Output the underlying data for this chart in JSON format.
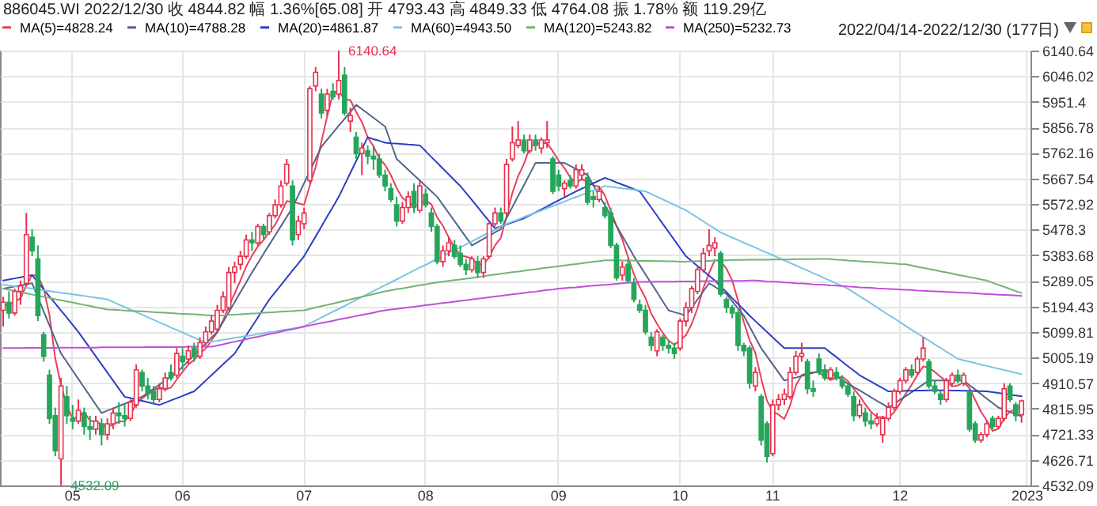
{
  "chart_data": {
    "type": "candlestick",
    "title": "886045.WI 2022/12/30 收 4844.82 幅 1.36%[65.08] 开 4793.43 高 4849.33 低 4764.08 振 1.78% 额 119.29亿",
    "categories": [
      null,
      null,
      null,
      null,
      null,
      null,
      null,
      null,
      null,
      null,
      null,
      null,
      "05",
      null,
      null,
      null,
      null,
      null,
      null,
      null,
      null,
      null,
      null,
      null,
      null,
      null,
      null,
      null,
      null,
      null,
      null,
      "06",
      null,
      null,
      null,
      null,
      null,
      null,
      null,
      null,
      null,
      null,
      null,
      null,
      null,
      null,
      null,
      null,
      null,
      null,
      null,
      null,
      "07",
      null,
      null,
      null,
      null,
      null,
      null,
      null,
      null,
      null,
      null,
      null,
      null,
      null,
      null,
      null,
      null,
      null,
      null,
      null,
      null,
      "08",
      null,
      null,
      null,
      null,
      null,
      null,
      null,
      null,
      null,
      null,
      null,
      null,
      null,
      null,
      null,
      null,
      null,
      null,
      null,
      null,
      null,
      null,
      "09",
      null,
      null,
      null,
      null,
      null,
      null,
      null,
      null,
      null,
      null,
      null,
      null,
      null,
      null,
      null,
      null,
      null,
      null,
      null,
      null,
      "10",
      null,
      null,
      null,
      null,
      null,
      null,
      null,
      null,
      null,
      null,
      null,
      null,
      null,
      null,
      null,
      "11",
      null,
      null,
      null,
      null,
      null,
      null,
      null,
      null,
      null,
      null,
      null,
      null,
      null,
      null,
      null,
      null,
      null,
      null,
      null,
      null,
      null,
      "12",
      null,
      null,
      null,
      null,
      null,
      null,
      null,
      null,
      null,
      null,
      null,
      null,
      null,
      null,
      null,
      null,
      null,
      null,
      null,
      null,
      null,
      "2023"
    ],
    "ohlc": [
      [
        5180,
        5230,
        5120,
        5210
      ],
      [
        5210,
        5250,
        5150,
        5170
      ],
      [
        5170,
        5260,
        5160,
        5250
      ],
      [
        5250,
        5290,
        5200,
        5270
      ],
      [
        5280,
        5540,
        5270,
        5460
      ],
      [
        5450,
        5480,
        5380,
        5400
      ],
      [
        5370,
        5420,
        5140,
        5160
      ],
      [
        5090,
        5100,
        4990,
        5010
      ],
      [
        4940,
        4960,
        4760,
        4780
      ],
      [
        4790,
        4820,
        4640,
        4660
      ],
      [
        4630,
        4930,
        4532.09,
        4900
      ],
      [
        4860,
        4900,
        4760,
        4790
      ],
      [
        4780,
        4830,
        4740,
        4770
      ],
      [
        4770,
        4850,
        4760,
        4810
      ],
      [
        4800,
        4820,
        4720,
        4750
      ],
      [
        4750,
        4790,
        4700,
        4740
      ],
      [
        4740,
        4790,
        4720,
        4770
      ],
      [
        4760,
        4780,
        4680,
        4720
      ],
      [
        4720,
        4780,
        4700,
        4760
      ],
      [
        4760,
        4820,
        4740,
        4800
      ],
      [
        4800,
        4840,
        4760,
        4790
      ],
      [
        4790,
        4830,
        4750,
        4780
      ],
      [
        4780,
        4850,
        4770,
        4840
      ],
      [
        4830,
        4980,
        4820,
        4960
      ],
      [
        4950,
        4960,
        4880,
        4900
      ],
      [
        4900,
        4930,
        4850,
        4870
      ],
      [
        4880,
        4900,
        4830,
        4850
      ],
      [
        4850,
        4910,
        4840,
        4890
      ],
      [
        4890,
        4950,
        4880,
        4930
      ],
      [
        4950,
        4980,
        4920,
        4930
      ],
      [
        4940,
        5040,
        4930,
        5020
      ],
      [
        5010,
        5040,
        4960,
        4990
      ],
      [
        5000,
        5050,
        4980,
        5030
      ],
      [
        5040,
        5060,
        4990,
        5010
      ],
      [
        5010,
        5080,
        5000,
        5060
      ],
      [
        5060,
        5120,
        5050,
        5100
      ],
      [
        5100,
        5160,
        5090,
        5140
      ],
      [
        5110,
        5200,
        5100,
        5180
      ],
      [
        5180,
        5250,
        5170,
        5230
      ],
      [
        5190,
        5340,
        5180,
        5320
      ],
      [
        5320,
        5360,
        5280,
        5340
      ],
      [
        5350,
        5400,
        5330,
        5380
      ],
      [
        5380,
        5460,
        5370,
        5440
      ],
      [
        5440,
        5470,
        5400,
        5430
      ],
      [
        5430,
        5500,
        5420,
        5490
      ],
      [
        5490,
        5500,
        5440,
        5460
      ],
      [
        5470,
        5540,
        5460,
        5530
      ],
      [
        5530,
        5590,
        5520,
        5570
      ],
      [
        5570,
        5660,
        5560,
        5640
      ],
      [
        5650,
        5740,
        5640,
        5720
      ],
      [
        5640,
        5660,
        5420,
        5440
      ],
      [
        5460,
        5530,
        5440,
        5510
      ],
      [
        5500,
        5560,
        5480,
        5540
      ],
      [
        5660,
        6010,
        5650,
        6000
      ],
      [
        6010,
        6080,
        5990,
        6060
      ],
      [
        5980,
        6000,
        5890,
        5910
      ],
      [
        5920,
        6000,
        5900,
        5980
      ],
      [
        5990,
        6020,
        5960,
        5970
      ],
      [
        5980,
        6140.64,
        5960,
        6030
      ],
      [
        6050,
        6080,
        5900,
        5910
      ],
      [
        5880,
        5930,
        5840,
        5900
      ],
      [
        5820,
        5840,
        5740,
        5760
      ],
      [
        5760,
        5800,
        5680,
        5780
      ],
      [
        5770,
        5790,
        5720,
        5750
      ],
      [
        5750,
        5790,
        5700,
        5740
      ],
      [
        5740,
        5760,
        5670,
        5680
      ],
      [
        5680,
        5700,
        5620,
        5640
      ],
      [
        5630,
        5650,
        5580,
        5590
      ],
      [
        5570,
        5600,
        5490,
        5510
      ],
      [
        5510,
        5580,
        5500,
        5560
      ],
      [
        5560,
        5620,
        5540,
        5600
      ],
      [
        5620,
        5650,
        5540,
        5560
      ],
      [
        5550,
        5660,
        5540,
        5640
      ],
      [
        5610,
        5630,
        5560,
        5570
      ],
      [
        5540,
        5560,
        5470,
        5490
      ],
      [
        5490,
        5500,
        5350,
        5360
      ],
      [
        5360,
        5420,
        5340,
        5400
      ],
      [
        5400,
        5450,
        5380,
        5430
      ],
      [
        5420,
        5440,
        5370,
        5380
      ],
      [
        5390,
        5420,
        5340,
        5350
      ],
      [
        5350,
        5370,
        5310,
        5330
      ],
      [
        5330,
        5380,
        5320,
        5370
      ],
      [
        5360,
        5380,
        5300,
        5320
      ],
      [
        5320,
        5380,
        5300,
        5370
      ],
      [
        5380,
        5510,
        5370,
        5500
      ],
      [
        5500,
        5560,
        5490,
        5540
      ],
      [
        5540,
        5560,
        5500,
        5510
      ],
      [
        5540,
        5740,
        5530,
        5720
      ],
      [
        5740,
        5860,
        5730,
        5800
      ],
      [
        5790,
        5880,
        5780,
        5810
      ],
      [
        5810,
        5830,
        5760,
        5770
      ],
      [
        5770,
        5830,
        5760,
        5810
      ],
      [
        5810,
        5830,
        5770,
        5790
      ],
      [
        5780,
        5820,
        5760,
        5810
      ],
      [
        5800,
        5880,
        5780,
        5810
      ],
      [
        5740,
        5750,
        5610,
        5620
      ],
      [
        5680,
        5700,
        5620,
        5640
      ],
      [
        5630,
        5660,
        5600,
        5650
      ],
      [
        5660,
        5680,
        5630,
        5640
      ],
      [
        5640,
        5720,
        5630,
        5700
      ],
      [
        5680,
        5720,
        5660,
        5700
      ],
      [
        5670,
        5690,
        5570,
        5580
      ],
      [
        5600,
        5620,
        5560,
        5590
      ],
      [
        5590,
        5640,
        5580,
        5620
      ],
      [
        5560,
        5580,
        5520,
        5530
      ],
      [
        5540,
        5560,
        5410,
        5420
      ],
      [
        5420,
        5430,
        5290,
        5300
      ],
      [
        5310,
        5360,
        5290,
        5340
      ],
      [
        5350,
        5370,
        5280,
        5290
      ],
      [
        5280,
        5300,
        5210,
        5220
      ],
      [
        5200,
        5220,
        5170,
        5180
      ],
      [
        5180,
        5200,
        5090,
        5100
      ],
      [
        5080,
        5100,
        5030,
        5050
      ],
      [
        5030,
        5110,
        5010,
        5100
      ],
      [
        5080,
        5090,
        5030,
        5050
      ],
      [
        5050,
        5070,
        5020,
        5040
      ],
      [
        5040,
        5060,
        5000,
        5020
      ],
      [
        5040,
        5150,
        5030,
        5140
      ],
      [
        5140,
        5210,
        5120,
        5190
      ],
      [
        5190,
        5270,
        5170,
        5260
      ],
      [
        5250,
        5340,
        5240,
        5330
      ],
      [
        5330,
        5410,
        5320,
        5390
      ],
      [
        5400,
        5480,
        5380,
        5420
      ],
      [
        5410,
        5450,
        5380,
        5430
      ],
      [
        5390,
        5400,
        5230,
        5240
      ],
      [
        5220,
        5230,
        5170,
        5190
      ],
      [
        5190,
        5200,
        5150,
        5170
      ],
      [
        5170,
        5180,
        5030,
        5050
      ],
      [
        5050,
        5060,
        5010,
        5030
      ],
      [
        5040,
        5050,
        4890,
        4910
      ],
      [
        4900,
        4970,
        4880,
        4950
      ],
      [
        4860,
        4870,
        4680,
        4700
      ],
      [
        4760,
        4770,
        4617,
        4640
      ],
      [
        4650,
        4850,
        4640,
        4830
      ],
      [
        4830,
        4870,
        4810,
        4850
      ],
      [
        4850,
        4890,
        4830,
        4870
      ],
      [
        4860,
        4970,
        4850,
        4950
      ],
      [
        4950,
        5030,
        4940,
        5010
      ],
      [
        5010,
        5060,
        4990,
        5020
      ],
      [
        4990,
        5000,
        4870,
        4890
      ],
      [
        4890,
        4920,
        4860,
        4880
      ],
      [
        5000,
        5020,
        4940,
        4950
      ],
      [
        4960,
        4980,
        4920,
        4930
      ],
      [
        4930,
        4970,
        4920,
        4960
      ],
      [
        4950,
        4970,
        4920,
        4930
      ],
      [
        4920,
        4940,
        4890,
        4900
      ],
      [
        4900,
        4910,
        4860,
        4870
      ],
      [
        4860,
        4880,
        4770,
        4790
      ],
      [
        4790,
        4850,
        4780,
        4830
      ],
      [
        4800,
        4820,
        4750,
        4770
      ],
      [
        4770,
        4800,
        4740,
        4760
      ],
      [
        4760,
        4800,
        4750,
        4780
      ],
      [
        4720,
        4790,
        4690,
        4780
      ],
      [
        4780,
        4840,
        4770,
        4820
      ],
      [
        4820,
        4890,
        4810,
        4880
      ],
      [
        4880,
        4930,
        4870,
        4920
      ],
      [
        4920,
        4970,
        4910,
        4960
      ],
      [
        4960,
        4980,
        4930,
        4940
      ],
      [
        4950,
        5010,
        4940,
        5000
      ],
      [
        5000,
        5080,
        4990,
        5040
      ],
      [
        4990,
        5000,
        4890,
        4900
      ],
      [
        4900,
        4920,
        4870,
        4880
      ],
      [
        4870,
        4880,
        4830,
        4850
      ],
      [
        4850,
        4930,
        4840,
        4920
      ],
      [
        4910,
        4950,
        4900,
        4940
      ],
      [
        4940,
        4960,
        4910,
        4920
      ],
      [
        4910,
        4950,
        4900,
        4940
      ],
      [
        4880,
        4890,
        4730,
        4740
      ],
      [
        4760,
        4770,
        4690,
        4700
      ],
      [
        4700,
        4730,
        4690,
        4720
      ],
      [
        4720,
        4770,
        4710,
        4760
      ],
      [
        4780,
        4790,
        4740,
        4750
      ],
      [
        4750,
        4790,
        4740,
        4780
      ],
      [
        4780,
        4910,
        4770,
        4890
      ],
      [
        4900,
        4910,
        4840,
        4850
      ],
      [
        4830,
        4840,
        4770,
        4790
      ],
      [
        4793.43,
        4849.33,
        4764.08,
        4844.82
      ],
      null
    ],
    "series": [
      {
        "name": "MA(5)=4828.24",
        "type": "line",
        "color": "#e8405a",
        "values": [
          5200,
          5200,
          5210,
          5225,
          5272,
          5310,
          5308,
          5260,
          5162,
          5002,
          4902,
          4828,
          4780,
          4786,
          4804,
          4772,
          4768,
          4758,
          4748,
          4758,
          4768,
          4770,
          4794,
          4834,
          4854,
          4870,
          4884,
          4894,
          4888,
          4894,
          4924,
          4952,
          4980,
          4996,
          5022,
          5038,
          5068,
          5098,
          5142,
          5194,
          5242,
          5290,
          5342,
          5382,
          5416,
          5440,
          5470,
          5496,
          5538,
          5584,
          5580,
          5576,
          5570,
          5642,
          5710,
          5804,
          5898,
          5984,
          5990,
          5960,
          5958,
          5914,
          5876,
          5820,
          5786,
          5742,
          5718,
          5680,
          5632,
          5596,
          5580,
          5564,
          5574,
          5586,
          5572,
          5524,
          5492,
          5450,
          5412,
          5384,
          5378,
          5372,
          5350,
          5348,
          5378,
          5420,
          5448,
          5528,
          5614,
          5676,
          5722,
          5782,
          5796,
          5798,
          5798,
          5768,
          5734,
          5706,
          5672,
          5650,
          5666,
          5654,
          5642,
          5638,
          5604,
          5548,
          5492,
          5442,
          5376,
          5314,
          5266,
          5226,
          5168,
          5130,
          5096,
          5068,
          5052,
          5070,
          5088,
          5130,
          5188,
          5262,
          5318,
          5366,
          5362,
          5334,
          5290,
          5216,
          5136,
          5070,
          5022,
          4928,
          4846,
          4806,
          4794,
          4778,
          4828,
          4902,
          4940,
          4948,
          4950,
          4950,
          4934,
          4922,
          4930,
          4934,
          4918,
          4890,
          4864,
          4832,
          4804,
          4786,
          4784,
          4782,
          4804,
          4836,
          4872,
          4904,
          4940,
          4972,
          4968,
          4952,
          4934,
          4918,
          4898,
          4902,
          4914,
          4892,
          4848,
          4804,
          4772,
          4734,
          4742,
          4780,
          4806,
          4812,
          4828,
          null
        ]
      },
      {
        "name": "MA(10)=4788.28",
        "type": "line",
        "color": "#52658c",
        "values": [
          5260,
          5264,
          5268,
          5272,
          5276,
          5280,
          5228,
          5176,
          5124,
          5072,
          5020,
          4989,
          4957,
          4926,
          4894,
          4863,
          4831,
          4800,
          4809,
          4817,
          4826,
          4834,
          4843,
          4851,
          4860,
          4875,
          4890,
          4905,
          4920,
          4935,
          4950,
          4971,
          4993,
          5014,
          5036,
          5057,
          5079,
          5100,
          5137,
          5173,
          5210,
          5247,
          5283,
          5320,
          5354,
          5389,
          5423,
          5457,
          5491,
          5526,
          5560,
          5605,
          5650,
          5695,
          5740,
          5785,
          5811,
          5837,
          5863,
          5888,
          5914,
          5940,
          5924,
          5908,
          5892,
          5876,
          5860,
          5800,
          5740,
          5720,
          5700,
          5680,
          5660,
          5640,
          5620,
          5600,
          5570,
          5540,
          5510,
          5480,
          5450,
          5420,
          5432,
          5444,
          5456,
          5468,
          5480,
          5521,
          5562,
          5603,
          5643,
          5684,
          5725,
          5725,
          5725,
          5725,
          5725,
          5725,
          5714,
          5703,
          5691,
          5680,
          5643,
          5605,
          5568,
          5530,
          5493,
          5455,
          5418,
          5380,
          5347,
          5313,
          5280,
          5247,
          5213,
          5180,
          5173,
          5167,
          5160,
          5190,
          5220,
          5250,
          5280,
          5267,
          5253,
          5240,
          5213,
          5187,
          5160,
          5120,
          5080,
          5040,
          5010,
          4980,
          4950,
          4920,
          4926,
          4931,
          4937,
          4943,
          4949,
          4954,
          4960,
          4947,
          4935,
          4922,
          4909,
          4896,
          4884,
          4871,
          4858,
          4845,
          4833,
          4820,
          4834,
          4849,
          4863,
          4877,
          4891,
          4906,
          4920,
          4920,
          4920,
          4920,
          4920,
          4920,
          4920,
          4903,
          4887,
          4870,
          4853,
          4837,
          4820,
          4812,
          4804,
          4796,
          4788,
          null
        ]
      },
      {
        "name": "MA(20)=4861.87",
        "type": "line",
        "color": "#2b3fc4",
        "values": [
          5290,
          5294,
          5298,
          5302,
          5306,
          5310,
          5284,
          5258,
          5231,
          5205,
          5179,
          5153,
          5126,
          5100,
          5070,
          5040,
          5010,
          4980,
          4950,
          4920,
          4890,
          4860,
          4855,
          4850,
          4845,
          4840,
          4835,
          4830,
          4838,
          4847,
          4855,
          4863,
          4872,
          4880,
          4900,
          4920,
          4940,
          4960,
          4980,
          5000,
          5020,
          5053,
          5087,
          5120,
          5153,
          5187,
          5220,
          5247,
          5273,
          5300,
          5327,
          5353,
          5380,
          5417,
          5453,
          5490,
          5527,
          5563,
          5600,
          5644,
          5688,
          5732,
          5776,
          5820,
          5813,
          5807,
          5800,
          5798,
          5797,
          5795,
          5793,
          5792,
          5790,
          5769,
          5747,
          5726,
          5704,
          5683,
          5661,
          5640,
          5614,
          5588,
          5562,
          5535,
          5509,
          5483,
          5490,
          5498,
          5505,
          5513,
          5520,
          5531,
          5542,
          5553,
          5564,
          5576,
          5587,
          5598,
          5609,
          5620,
          5630,
          5640,
          5650,
          5660,
          5670,
          5662,
          5653,
          5645,
          5637,
          5628,
          5620,
          5590,
          5560,
          5530,
          5500,
          5470,
          5440,
          5410,
          5380,
          5362,
          5344,
          5326,
          5308,
          5290,
          5268,
          5247,
          5225,
          5203,
          5182,
          5160,
          5140,
          5120,
          5100,
          5080,
          5060,
          5040,
          5040,
          5040,
          5040,
          5040,
          5040,
          5040,
          5040,
          5023,
          5007,
          4990,
          4973,
          4957,
          4940,
          4928,
          4916,
          4904,
          4892,
          4880,
          4881,
          4881,
          4882,
          4882,
          4883,
          4883,
          4884,
          4885,
          4884,
          4884,
          4883,
          4883,
          4882,
          4882,
          4881,
          4881,
          4880,
          4877,
          4874,
          4871,
          4868,
          4865,
          4862,
          null
        ]
      },
      {
        "name": "MA(60)=4943.50",
        "type": "line",
        "color": "#7cc4e2",
        "values": [
          5275,
          5272,
          5269,
          5266,
          5263,
          5260,
          5257,
          5254,
          5251,
          5248,
          5245,
          5242,
          5239,
          5236,
          5233,
          5230,
          5227,
          5224,
          5220,
          5211,
          5201,
          5192,
          5182,
          5173,
          5164,
          5154,
          5145,
          5135,
          5126,
          5116,
          5107,
          5098,
          5088,
          5079,
          5069,
          5060,
          5064,
          5067,
          5071,
          5074,
          5078,
          5081,
          5085,
          5088,
          5092,
          5095,
          5099,
          5102,
          5106,
          5109,
          5113,
          5116,
          5120,
          5131,
          5142,
          5153,
          5164,
          5175,
          5185,
          5196,
          5207,
          5218,
          5229,
          5240,
          5251,
          5262,
          5273,
          5283,
          5294,
          5305,
          5316,
          5327,
          5338,
          5348,
          5359,
          5370,
          5381,
          5392,
          5403,
          5413,
          5424,
          5435,
          5446,
          5457,
          5468,
          5478,
          5489,
          5500,
          5508,
          5516,
          5525,
          5533,
          5541,
          5549,
          5558,
          5566,
          5574,
          5582,
          5591,
          5599,
          5607,
          5615,
          5624,
          5632,
          5640,
          5637,
          5634,
          5631,
          5629,
          5626,
          5623,
          5620,
          5610,
          5600,
          5590,
          5580,
          5570,
          5560,
          5550,
          5536,
          5523,
          5509,
          5495,
          5482,
          5468,
          5459,
          5449,
          5440,
          5430,
          5421,
          5412,
          5402,
          5393,
          5384,
          5374,
          5365,
          5355,
          5346,
          5336,
          5327,
          5317,
          5308,
          5298,
          5289,
          5279,
          5270,
          5260,
          5246,
          5232,
          5219,
          5205,
          5191,
          5177,
          5163,
          5150,
          5136,
          5122,
          5108,
          5095,
          5081,
          5068,
          5054,
          5041,
          5027,
          5014,
          5000,
          4995,
          4990,
          4985,
          4979,
          4974,
          4969,
          4964,
          4959,
          4954,
          4949,
          4944,
          null
        ]
      },
      {
        "name": "MA(120)=5243.82",
        "type": "line",
        "color": "#74b374",
        "values": [
          5260,
          5256,
          5251,
          5247,
          5243,
          5238,
          5234,
          5230,
          5226,
          5221,
          5217,
          5213,
          5209,
          5204,
          5200,
          5196,
          5191,
          5187,
          5183,
          5182,
          5181,
          5179,
          5178,
          5177,
          5176,
          5175,
          5173,
          5172,
          5171,
          5170,
          5168,
          5167,
          5166,
          5165,
          5164,
          5162,
          5161,
          5160,
          5161,
          5163,
          5164,
          5165,
          5167,
          5168,
          5169,
          5171,
          5172,
          5173,
          5175,
          5176,
          5177,
          5179,
          5180,
          5185,
          5190,
          5195,
          5200,
          5205,
          5210,
          5215,
          5220,
          5225,
          5230,
          5235,
          5240,
          5245,
          5250,
          5254,
          5258,
          5261,
          5265,
          5269,
          5273,
          5276,
          5280,
          5283,
          5286,
          5289,
          5292,
          5294,
          5297,
          5300,
          5303,
          5306,
          5309,
          5312,
          5315,
          5318,
          5321,
          5323,
          5326,
          5329,
          5332,
          5335,
          5338,
          5340,
          5343,
          5346,
          5349,
          5351,
          5354,
          5357,
          5360,
          5362,
          5365,
          5365,
          5365,
          5364,
          5364,
          5364,
          5363,
          5363,
          5363,
          5362,
          5362,
          5361,
          5361,
          5360,
          5360,
          5361,
          5362,
          5362,
          5363,
          5364,
          5365,
          5365,
          5366,
          5366,
          5366,
          5367,
          5367,
          5367,
          5367,
          5368,
          5368,
          5368,
          5368,
          5369,
          5369,
          5369,
          5369,
          5370,
          5370,
          5369,
          5367,
          5366,
          5364,
          5363,
          5361,
          5360,
          5359,
          5357,
          5356,
          5354,
          5353,
          5351,
          5350,
          5346,
          5341,
          5337,
          5333,
          5329,
          5324,
          5320,
          5316,
          5311,
          5307,
          5303,
          5299,
          5294,
          5290,
          5282,
          5274,
          5267,
          5259,
          5251,
          5244,
          null
        ]
      },
      {
        "name": "MA(250)=5232.73",
        "type": "line",
        "color": "#c24fd9",
        "values": [
          5040,
          5040,
          5040,
          5040,
          5041,
          5041,
          5041,
          5041,
          5041,
          5041,
          5042,
          5042,
          5042,
          5042,
          5042,
          5042,
          5042,
          5043,
          5043,
          5043,
          5043,
          5043,
          5043,
          5043,
          5043,
          5044,
          5044,
          5044,
          5044,
          5044,
          5044,
          5044,
          5045,
          5045,
          5045,
          5045,
          5045,
          5050,
          5054,
          5059,
          5064,
          5068,
          5073,
          5078,
          5082,
          5087,
          5092,
          5096,
          5101,
          5106,
          5110,
          5115,
          5120,
          5124,
          5129,
          5133,
          5137,
          5141,
          5146,
          5150,
          5154,
          5159,
          5163,
          5167,
          5171,
          5176,
          5180,
          5183,
          5185,
          5188,
          5191,
          5193,
          5196,
          5199,
          5201,
          5204,
          5207,
          5209,
          5212,
          5215,
          5217,
          5220,
          5223,
          5225,
          5228,
          5231,
          5233,
          5236,
          5239,
          5241,
          5244,
          5247,
          5249,
          5252,
          5255,
          5257,
          5260,
          5262,
          5264,
          5265,
          5267,
          5269,
          5271,
          5273,
          5274,
          5276,
          5278,
          5280,
          5282,
          5283,
          5285,
          5285,
          5285,
          5286,
          5286,
          5286,
          5286,
          5287,
          5287,
          5287,
          5287,
          5288,
          5288,
          5288,
          5288,
          5289,
          5289,
          5289,
          5289,
          5290,
          5290,
          5289,
          5287,
          5286,
          5285,
          5283,
          5282,
          5280,
          5279,
          5278,
          5276,
          5275,
          5274,
          5272,
          5271,
          5270,
          5268,
          5267,
          5265,
          5264,
          5263,
          5261,
          5260,
          5259,
          5258,
          5257,
          5256,
          5255,
          5253,
          5252,
          5251,
          5250,
          5249,
          5248,
          5247,
          5246,
          5245,
          5244,
          5243,
          5241,
          5240,
          5239,
          5238,
          5237,
          5236,
          5235,
          5233,
          null
        ]
      }
    ],
    "ylim": [
      4532.09,
      6140.64
    ],
    "yticks": [
      4532.09,
      4626.71,
      4721.33,
      4815.95,
      4910.57,
      5005.19,
      5099.81,
      5194.43,
      5289.05,
      5383.68,
      5478.3,
      5572.92,
      5667.54,
      5762.16,
      5856.78,
      5951.4,
      6046.02,
      6140.64
    ],
    "grid": true,
    "legend": "top left",
    "annotations": [
      "2022/04/14-2022/12/30 (177日)",
      "6140.64",
      "4532.09"
    ]
  }
}
